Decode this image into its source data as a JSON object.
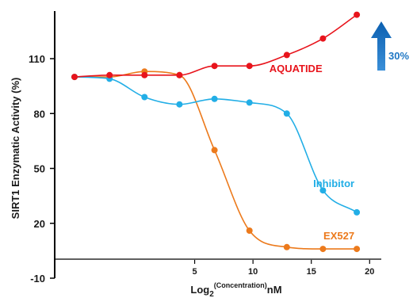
{
  "chart_data": {
    "type": "line",
    "title": "",
    "ylabel": "SIRT1 Enzymatic Activity (%)",
    "xlabel": {
      "prefix": "Log",
      "subscript": "2",
      "superscript": "(Concentration)",
      "suffix": "nM"
    },
    "xlim": [
      -7,
      21
    ],
    "ylim": [
      -10,
      136
    ],
    "x_ticks": [
      5,
      10,
      15,
      20
    ],
    "y_ticks": [
      -10,
      20,
      50,
      80,
      110
    ],
    "grid": false,
    "smooth": true,
    "series": [
      {
        "name": "AQUATIDE",
        "color": "#e8141c",
        "points": [
          [
            -5.3,
            100
          ],
          [
            -2.3,
            101
          ],
          [
            0.7,
            101
          ],
          [
            3.7,
            101
          ],
          [
            6.7,
            106
          ],
          [
            9.7,
            106
          ],
          [
            12.9,
            112
          ],
          [
            16,
            121
          ],
          [
            18.9,
            134
          ]
        ]
      },
      {
        "name": "Inhibitor",
        "color": "#22aee6",
        "points": [
          [
            -5.3,
            100
          ],
          [
            -2.3,
            99
          ],
          [
            0.7,
            89
          ],
          [
            3.7,
            85
          ],
          [
            6.7,
            88
          ],
          [
            9.7,
            86
          ],
          [
            12.9,
            80
          ],
          [
            16,
            38
          ],
          [
            18.9,
            26
          ]
        ]
      },
      {
        "name": "EX527",
        "color": "#ec7a1c",
        "points": [
          [
            -5.3,
            100
          ],
          [
            -2.3,
            100
          ],
          [
            0.7,
            103
          ],
          [
            3.7,
            101
          ],
          [
            6.7,
            60
          ],
          [
            9.7,
            16
          ],
          [
            12.9,
            7
          ],
          [
            16,
            6
          ],
          [
            18.9,
            6
          ]
        ]
      }
    ],
    "annotations": [
      {
        "text": "30%",
        "color": "#1f77c4",
        "arrow": "up"
      }
    ]
  }
}
